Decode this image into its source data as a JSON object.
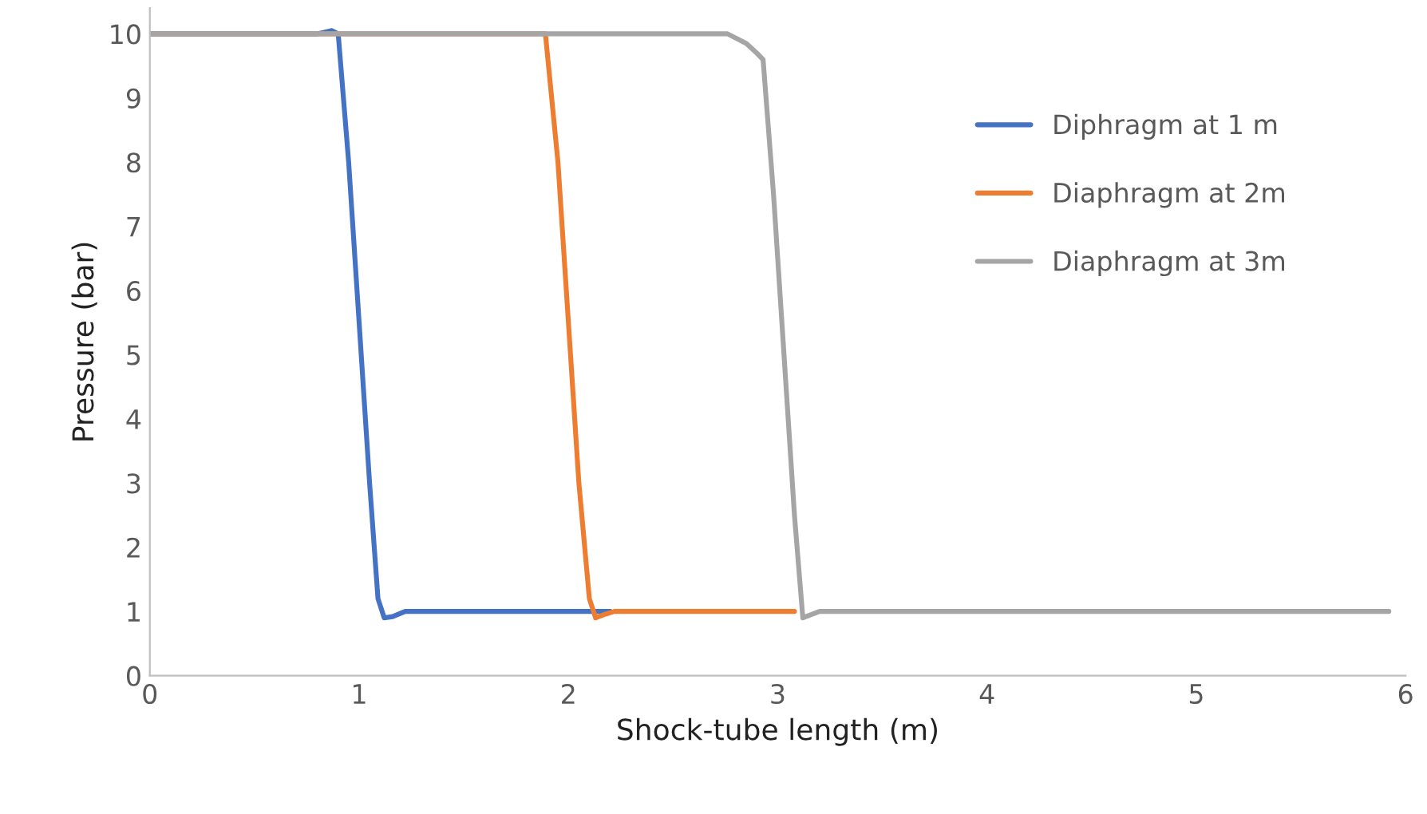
{
  "chart_data": {
    "type": "line",
    "xlabel": "Shock-tube length (m)",
    "ylabel": "Pressure (bar)",
    "xlim": [
      0,
      6
    ],
    "xticks": [
      0,
      1,
      2,
      3,
      4,
      5,
      6
    ],
    "ylim": [
      0,
      10.4
    ],
    "yticks": [
      0,
      1,
      2,
      3,
      4,
      5,
      6,
      7,
      8,
      9,
      10
    ],
    "grid": false,
    "legend": "right",
    "marker": "none",
    "line_style": "solid",
    "series": [
      {
        "name": "Diphragm at 1 m",
        "color": "#4472c4",
        "x": [
          0,
          0.8,
          0.87,
          0.9,
          0.95,
          1.0,
          1.05,
          1.09,
          1.12,
          1.16,
          1.22,
          2.2
        ],
        "values": [
          10,
          10,
          10.05,
          10,
          8,
          5.5,
          3,
          1.2,
          0.9,
          0.92,
          1.0,
          1.0
        ]
      },
      {
        "name": "Diaphragm at 2m",
        "color": "#ed7d31",
        "x": [
          0,
          1.89,
          1.95,
          2.0,
          2.05,
          2.1,
          2.13,
          2.17,
          2.22,
          3.08
        ],
        "values": [
          10,
          10,
          8,
          5.5,
          3,
          1.2,
          0.9,
          0.95,
          1.0,
          1.0
        ]
      },
      {
        "name": "Diaphragm at 3m",
        "color": "#a5a5a5",
        "x": [
          0,
          2.76,
          2.85,
          2.9,
          2.93,
          2.98,
          3.03,
          3.08,
          3.12,
          3.16,
          3.2,
          5.92
        ],
        "values": [
          10,
          10,
          9.85,
          9.7,
          9.6,
          7.5,
          5,
          2.5,
          0.9,
          0.95,
          1.0,
          1.0
        ]
      }
    ]
  }
}
